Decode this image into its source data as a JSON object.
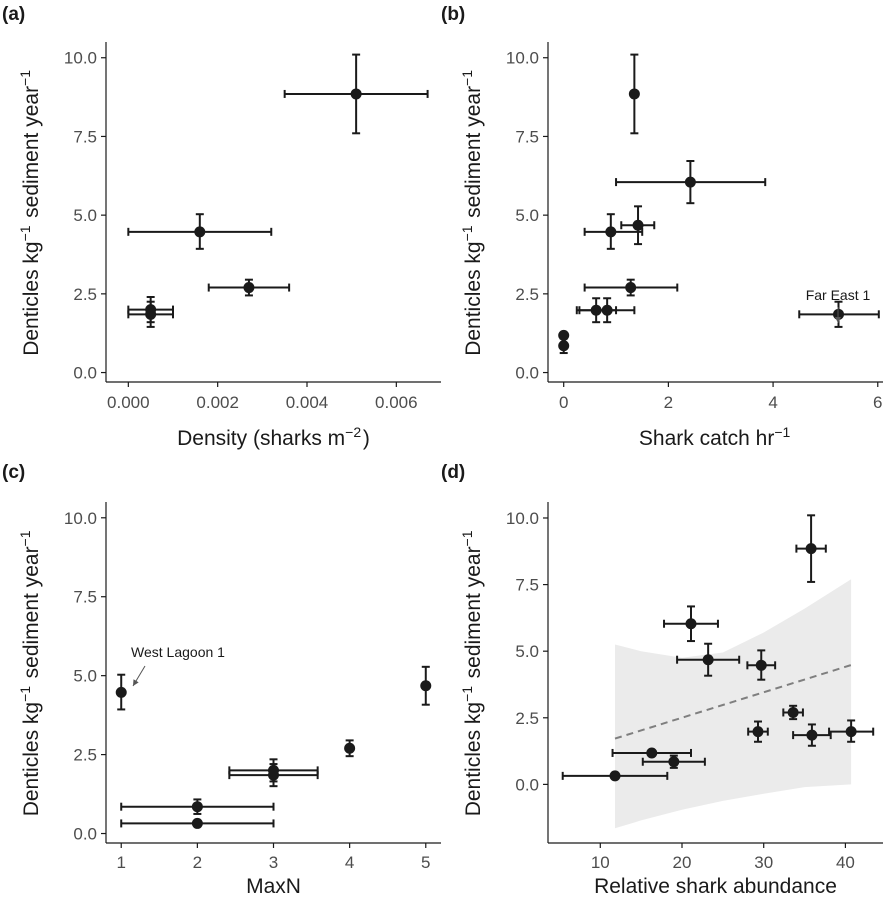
{
  "chart_data": [
    {
      "panel_label": "(a)",
      "type": "scatter",
      "xlabel": "Density (sharks m⁻²)",
      "ylabel": "Denticles kg⁻¹ sediment year⁻¹",
      "xlim": [
        -0.0005,
        0.007
      ],
      "ylim": [
        -0.3,
        10.5
      ],
      "xticks": [
        0,
        0.002,
        0.004,
        0.006
      ],
      "xtick_labels": [
        "0.000",
        "0.002",
        "0.004",
        "0.006"
      ],
      "yticks": [
        0,
        2.5,
        5,
        7.5,
        10
      ],
      "ytick_labels": [
        "0.0",
        "2.5",
        "5.0",
        "7.5",
        "10.0"
      ],
      "points": [
        {
          "x": 0.0051,
          "y": 8.85,
          "xerr": [
            0.0035,
            0.0067
          ],
          "yerr": [
            7.6,
            10.1
          ]
        },
        {
          "x": 0.0016,
          "y": 4.47,
          "xerr": [
            0.0,
            0.0032
          ],
          "yerr": [
            3.93,
            5.03
          ]
        },
        {
          "x": 0.0027,
          "y": 2.7,
          "xerr": [
            0.0018,
            0.0036
          ],
          "yerr": [
            2.45,
            2.95
          ]
        },
        {
          "x": 0.0005,
          "y": 2.0,
          "xerr": [
            0.0,
            0.001
          ],
          "yerr": [
            1.6,
            2.4
          ]
        },
        {
          "x": 0.0005,
          "y": 1.85,
          "xerr": [
            0.0,
            0.001
          ],
          "yerr": [
            1.45,
            2.25
          ]
        }
      ]
    },
    {
      "panel_label": "(b)",
      "type": "scatter",
      "xlabel": "Shark catch hr⁻¹",
      "ylabel": "Denticles kg⁻¹ sediment year⁻¹",
      "xlim": [
        -0.3,
        6.1
      ],
      "ylim": [
        -0.3,
        10.5
      ],
      "xticks": [
        0,
        2,
        4,
        6
      ],
      "xtick_labels": [
        "0",
        "2",
        "4",
        "6"
      ],
      "yticks": [
        0,
        2.5,
        5,
        7.5,
        10
      ],
      "ytick_labels": [
        "0.0",
        "2.5",
        "5.0",
        "7.5",
        "10.0"
      ],
      "points": [
        {
          "x": 1.35,
          "y": 8.85,
          "xerr": null,
          "yerr": [
            7.6,
            10.1
          ]
        },
        {
          "x": 2.42,
          "y": 6.05,
          "xerr": [
            1.0,
            3.85
          ],
          "yerr": [
            5.38,
            6.72
          ]
        },
        {
          "x": 1.42,
          "y": 4.68,
          "xerr": [
            1.1,
            1.73
          ],
          "yerr": [
            4.08,
            5.28
          ]
        },
        {
          "x": 0.9,
          "y": 4.47,
          "xerr": [
            0.4,
            1.5
          ],
          "yerr": [
            3.93,
            5.03
          ]
        },
        {
          "x": 1.28,
          "y": 2.7,
          "xerr": [
            0.4,
            2.17
          ],
          "yerr": [
            2.45,
            2.95
          ]
        },
        {
          "x": 0.62,
          "y": 1.98,
          "xerr": [
            0.25,
            1.0
          ],
          "yerr": [
            1.6,
            2.36
          ]
        },
        {
          "x": 0.83,
          "y": 1.98,
          "xerr": [
            0.3,
            1.35
          ],
          "yerr": [
            1.6,
            2.36
          ]
        },
        {
          "x": 5.25,
          "y": 1.85,
          "xerr": [
            4.5,
            6.02
          ],
          "yerr": [
            1.45,
            2.25
          ]
        },
        {
          "x": 0.0,
          "y": 1.18,
          "xerr": null,
          "yerr": null
        },
        {
          "x": 0.0,
          "y": 0.85,
          "xerr": null,
          "yerr": [
            0.62,
            1.08
          ]
        }
      ],
      "annotations": [
        {
          "text": "Far East 1",
          "x": 5.25,
          "y": 2.5
        }
      ]
    },
    {
      "panel_label": "(c)",
      "type": "scatter",
      "xlabel": "MaxN",
      "ylabel": "Denticles kg⁻¹ sediment year⁻¹",
      "xlim": [
        0.8,
        5.2
      ],
      "ylim": [
        -0.3,
        10.5
      ],
      "xticks": [
        1,
        2,
        3,
        4,
        5
      ],
      "xtick_labels": [
        "1",
        "2",
        "3",
        "4",
        "5"
      ],
      "yticks": [
        0,
        2.5,
        5,
        7.5,
        10
      ],
      "ytick_labels": [
        "0.0",
        "2.5",
        "5.0",
        "7.5",
        "10.0"
      ],
      "points": [
        {
          "x": 1.0,
          "y": 4.47,
          "xerr": null,
          "yerr": [
            3.93,
            5.03
          ]
        },
        {
          "x": 5.0,
          "y": 4.68,
          "xerr": null,
          "yerr": [
            4.08,
            5.28
          ]
        },
        {
          "x": 4.0,
          "y": 2.7,
          "xerr": null,
          "yerr": [
            2.45,
            2.95
          ]
        },
        {
          "x": 3.0,
          "y": 2.0,
          "xerr": [
            2.42,
            3.58
          ],
          "yerr": [
            1.65,
            2.35
          ]
        },
        {
          "x": 3.0,
          "y": 1.85,
          "xerr": [
            2.42,
            3.58
          ],
          "yerr": [
            1.5,
            2.2
          ]
        },
        {
          "x": 2.0,
          "y": 0.85,
          "xerr": [
            1.0,
            3.0
          ],
          "yerr": [
            0.62,
            1.08
          ]
        },
        {
          "x": 2.0,
          "y": 0.32,
          "xerr": [
            1.0,
            3.0
          ],
          "yerr": null
        }
      ],
      "annotations": [
        {
          "text": "West Lagoon 1",
          "x": 1.0,
          "y": 4.47
        }
      ]
    },
    {
      "panel_label": "(d)",
      "type": "scatter",
      "xlabel": "Relative shark abundance",
      "ylabel": "Denticles kg⁻¹ sediment year⁻¹",
      "xlim": [
        3.6,
        44.6
      ],
      "ylim": [
        -2.2,
        10.6
      ],
      "xticks": [
        10,
        20,
        30,
        40
      ],
      "xtick_labels": [
        "10",
        "20",
        "30",
        "40"
      ],
      "yticks": [
        0,
        2.5,
        5,
        7.5,
        10
      ],
      "ytick_labels": [
        "0.0",
        "2.5",
        "5.0",
        "7.5",
        "10.0"
      ],
      "points": [
        {
          "x": 35.8,
          "y": 8.85,
          "xerr": [
            34.0,
            37.6
          ],
          "yerr": [
            7.6,
            10.1
          ]
        },
        {
          "x": 21.1,
          "y": 6.03,
          "xerr": [
            17.8,
            24.4
          ],
          "yerr": [
            5.38,
            6.68
          ]
        },
        {
          "x": 23.2,
          "y": 4.68,
          "xerr": [
            19.4,
            27.0
          ],
          "yerr": [
            4.08,
            5.28
          ]
        },
        {
          "x": 29.7,
          "y": 4.47,
          "xerr": [
            28.0,
            31.4
          ],
          "yerr": [
            3.93,
            5.03
          ]
        },
        {
          "x": 33.6,
          "y": 2.7,
          "xerr": [
            32.4,
            34.8
          ],
          "yerr": [
            2.45,
            2.95
          ]
        },
        {
          "x": 29.3,
          "y": 1.98,
          "xerr": [
            28.1,
            30.5
          ],
          "yerr": [
            1.6,
            2.36
          ]
        },
        {
          "x": 35.9,
          "y": 1.85,
          "xerr": [
            33.6,
            38.2
          ],
          "yerr": [
            1.45,
            2.25
          ]
        },
        {
          "x": 40.7,
          "y": 1.98,
          "xerr": [
            38.0,
            43.4
          ],
          "yerr": [
            1.6,
            2.4
          ]
        },
        {
          "x": 16.3,
          "y": 1.18,
          "xerr": [
            11.5,
            21.1
          ],
          "yerr": null
        },
        {
          "x": 19.0,
          "y": 0.85,
          "xerr": [
            15.2,
            22.8
          ],
          "yerr": [
            0.62,
            1.08
          ]
        },
        {
          "x": 11.8,
          "y": 0.32,
          "xerr": [
            5.4,
            18.2
          ],
          "yerr": null
        }
      ],
      "trend": {
        "x": [
          11.8,
          40.7
        ],
        "y": [
          1.72,
          4.48
        ]
      },
      "confidence_band": {
        "x": [
          11.8,
          15,
          20,
          25,
          30,
          35,
          40.7
        ],
        "lower": [
          -1.65,
          -1.35,
          -0.95,
          -0.62,
          -0.35,
          -0.1,
          0.0
        ],
        "upper": [
          5.25,
          5.0,
          4.75,
          4.95,
          5.7,
          6.6,
          7.7
        ]
      }
    }
  ],
  "colors": {
    "point": "#1a1a1a",
    "error_bar": "#1a1a1a",
    "axis": "#1a1a1a",
    "tick_label": "#4d4d4d",
    "trend": "#7f7f7f",
    "band": "#ebebeb"
  }
}
